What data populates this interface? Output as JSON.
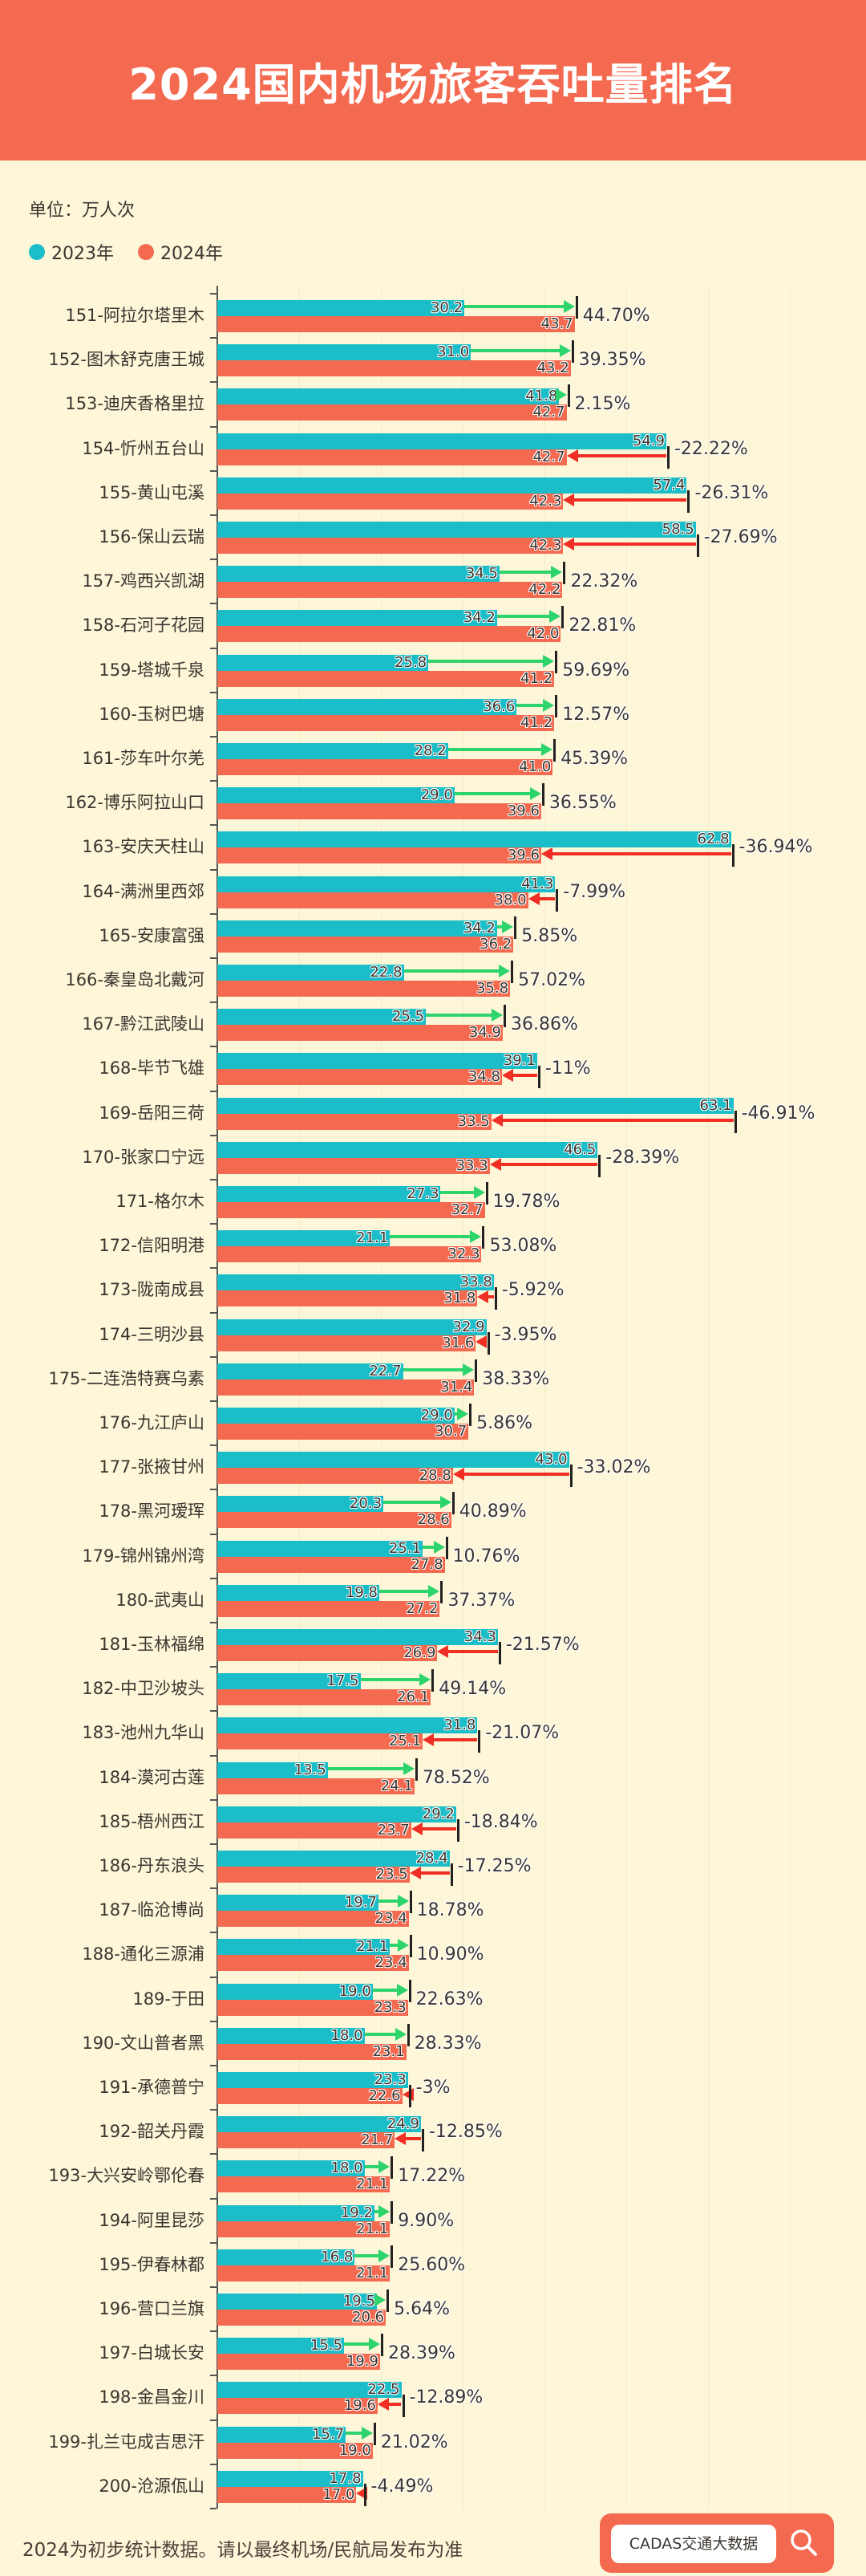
{
  "header": {
    "title": "2024国内机场旅客吞吐量排名"
  },
  "unit_label": "单位：万人次",
  "footer": {
    "note": "2024为初步统计数据。请以最终机场/民航局发布为准",
    "brand": "CADAS交通大数据",
    "brand_icon": "search-icon"
  },
  "colors": {
    "y2023": "#1BBEC8",
    "y2024": "#F46A50",
    "increase_arrow": "#2DD46C",
    "decrease_arrow": "#F02E24",
    "header": "#F46A50",
    "background": "#FDF6D8"
  },
  "chart_data": {
    "type": "bar",
    "orientation": "horizontal",
    "title": "2024国内机场旅客吞吐量排名",
    "xlabel": "",
    "ylabel": "",
    "xlim": [
      0,
      70
    ],
    "grid": true,
    "legend_position": "top-left",
    "series": [
      {
        "name": "2023年",
        "values": [
          30.2,
          31.0,
          41.8,
          54.9,
          57.4,
          58.5,
          34.5,
          34.2,
          25.8,
          36.6,
          28.2,
          29.0,
          62.8,
          41.3,
          34.2,
          22.8,
          25.5,
          39.1,
          63.1,
          46.5,
          27.3,
          21.1,
          33.8,
          32.9,
          22.7,
          29.0,
          43.0,
          20.3,
          25.1,
          19.8,
          34.3,
          17.5,
          31.8,
          13.5,
          29.2,
          28.4,
          19.7,
          21.1,
          19.0,
          18.0,
          23.3,
          24.9,
          18.0,
          19.2,
          16.8,
          19.5,
          15.5,
          22.5,
          15.7,
          17.8
        ]
      },
      {
        "name": "2024年",
        "values": [
          43.7,
          43.2,
          42.7,
          42.7,
          42.3,
          42.3,
          42.2,
          42.0,
          41.2,
          41.2,
          41.0,
          39.6,
          39.6,
          38.0,
          36.2,
          35.8,
          34.9,
          34.8,
          33.5,
          33.3,
          32.7,
          32.3,
          31.8,
          31.6,
          31.4,
          30.7,
          28.8,
          28.6,
          27.8,
          27.2,
          26.9,
          26.1,
          25.1,
          24.1,
          23.7,
          23.5,
          23.4,
          23.4,
          23.3,
          23.1,
          22.6,
          21.7,
          21.1,
          21.1,
          21.1,
          20.6,
          19.9,
          19.6,
          19.0,
          17.0
        ]
      }
    ],
    "value_labels_2023": [
      "30.2",
      "31.0",
      "41.8",
      "54.9",
      "57.4",
      "58.5",
      "34.5",
      "34.2",
      "25.8",
      "36.6",
      "28.2",
      "29.0",
      "62.8",
      "41.3",
      "34.2",
      "22.8",
      "25.5",
      "39.1",
      "63.1",
      "46.5",
      "27.3",
      "21.1",
      "33.8",
      "32.9",
      "22.7",
      "29.0",
      "43.0",
      "20.3",
      "25.1",
      "19.8",
      "34.3",
      "17.5",
      "31.8",
      "13.5",
      "29.2",
      "28.4",
      "19.7",
      "21.1",
      "19.0",
      "18.0",
      "23.3",
      "24.9",
      "18.0",
      "19.2",
      "16.8",
      "19.5",
      "15.5",
      "22.5",
      "15.7",
      "17.8"
    ],
    "value_labels_2024": [
      "43.7",
      "43.2",
      "42.7",
      "42.7",
      "42.3",
      "42.3",
      "42.2",
      "42.0",
      "41.2",
      "41.2",
      "41.0",
      "39.6",
      "39.6",
      "38.0",
      "36.2",
      "35.8",
      "34.9",
      "34.8",
      "33.5",
      "33.3",
      "32.7",
      "32.3",
      "31.8",
      "31.6",
      "31.4",
      "30.7",
      "28.8",
      "28.6",
      "27.8",
      "27.2",
      "26.9",
      "26.1",
      "25.1",
      "24.1",
      "23.7",
      "23.5",
      "23.4",
      "23.4",
      "23.3",
      "23.1",
      "22.6",
      "21.7",
      "21.1",
      "21.1",
      "21.1",
      "20.6",
      "19.9",
      "19.6",
      "19.0",
      "17.0"
    ],
    "categories": [
      "151-阿拉尔塔里木",
      "152-图木舒克唐王城",
      "153-迪庆香格里拉",
      "154-忻州五台山",
      "155-黄山屯溪",
      "156-保山云瑞",
      "157-鸡西兴凯湖",
      "158-石河子花园",
      "159-塔城千泉",
      "160-玉树巴塘",
      "161-莎车叶尔羌",
      "162-博乐阿拉山口",
      "163-安庆天柱山",
      "164-满洲里西郊",
      "165-安康富强",
      "166-秦皇岛北戴河",
      "167-黔江武陵山",
      "168-毕节飞雄",
      "169-岳阳三荷",
      "170-张家口宁远",
      "171-格尔木",
      "172-信阳明港",
      "173-陇南成县",
      "174-三明沙县",
      "175-二连浩特赛乌素",
      "176-九江庐山",
      "177-张掖甘州",
      "178-黑河瑷珲",
      "179-锦州锦州湾",
      "180-武夷山",
      "181-玉林福绵",
      "182-中卫沙坡头",
      "183-池州九华山",
      "184-漠河古莲",
      "185-梧州西江",
      "186-丹东浪头",
      "187-临沧博尚",
      "188-通化三源浦",
      "189-于田",
      "190-文山普者黑",
      "191-承德普宁",
      "192-韶关丹霞",
      "193-大兴安岭鄂伦春",
      "194-阿里昆莎",
      "195-伊春林都",
      "196-营口兰旗",
      "197-白城长安",
      "198-金昌金川",
      "199-扎兰屯成吉思汗",
      "200-沧源佤山"
    ],
    "change_labels": [
      "44.70%",
      "39.35%",
      "2.15%",
      "-22.22%",
      "-26.31%",
      "-27.69%",
      "22.32%",
      "22.81%",
      "59.69%",
      "12.57%",
      "45.39%",
      "36.55%",
      "-36.94%",
      "-7.99%",
      "5.85%",
      "57.02%",
      "36.86%",
      "-11%",
      "-46.91%",
      "-28.39%",
      "19.78%",
      "53.08%",
      "-5.92%",
      "-3.95%",
      "38.33%",
      "5.86%",
      "-33.02%",
      "40.89%",
      "10.76%",
      "37.37%",
      "-21.57%",
      "49.14%",
      "-21.07%",
      "78.52%",
      "-18.84%",
      "-17.25%",
      "18.78%",
      "10.90%",
      "22.63%",
      "28.33%",
      "-3%",
      "-12.85%",
      "17.22%",
      "9.90%",
      "25.60%",
      "5.64%",
      "28.39%",
      "-12.89%",
      "21.02%",
      "-4.49%"
    ]
  }
}
